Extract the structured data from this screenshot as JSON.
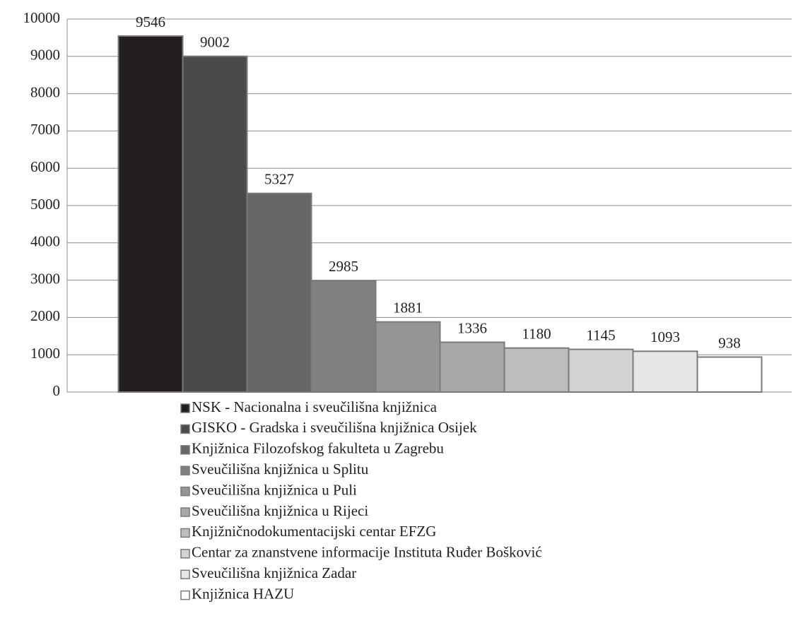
{
  "chart_data": {
    "type": "bar",
    "categories": [
      null
    ],
    "series": [
      {
        "name": "NSK - Nacionalna i sveučilišna knjižnica",
        "color": "#231f20",
        "values": [
          9546
        ]
      },
      {
        "name": "GISKO - Gradska i sveučilišna knjižnica Osijek",
        "color": "#4a4a4a",
        "values": [
          9002
        ]
      },
      {
        "name": "Knjižnica Filozofskog fakulteta u Zagrebu",
        "color": "#666666",
        "values": [
          5327
        ]
      },
      {
        "name": "Sveučilišna knjižnica u Splitu",
        "color": "#808080",
        "values": [
          2985
        ]
      },
      {
        "name": "Sveučilišna knjižnica u Puli",
        "color": "#959595",
        "values": [
          1881
        ]
      },
      {
        "name": "Sveučilišna knjižnica u Rijeci",
        "color": "#a8a8a8",
        "values": [
          1336
        ]
      },
      {
        "name": "Knjižničnodokumentacijski centar EFZG",
        "color": "#bdbdbd",
        "values": [
          1180
        ]
      },
      {
        "name": "Centar za znanstvene informacije Instituta Ruđer Bošković",
        "color": "#d2d2d2",
        "values": [
          1145
        ]
      },
      {
        "name": "Sveučilišna knjižnica Zadar",
        "color": "#e6e6e6",
        "values": [
          1093
        ]
      },
      {
        "name": "Knjižnica HAZU",
        "color": "#ffffff",
        "values": [
          938
        ]
      }
    ],
    "ylim": [
      0,
      10000
    ],
    "yticks": [
      0,
      1000,
      2000,
      3000,
      4000,
      5000,
      6000,
      7000,
      8000,
      9000,
      10000
    ],
    "grid": true,
    "legend": "bottom"
  }
}
